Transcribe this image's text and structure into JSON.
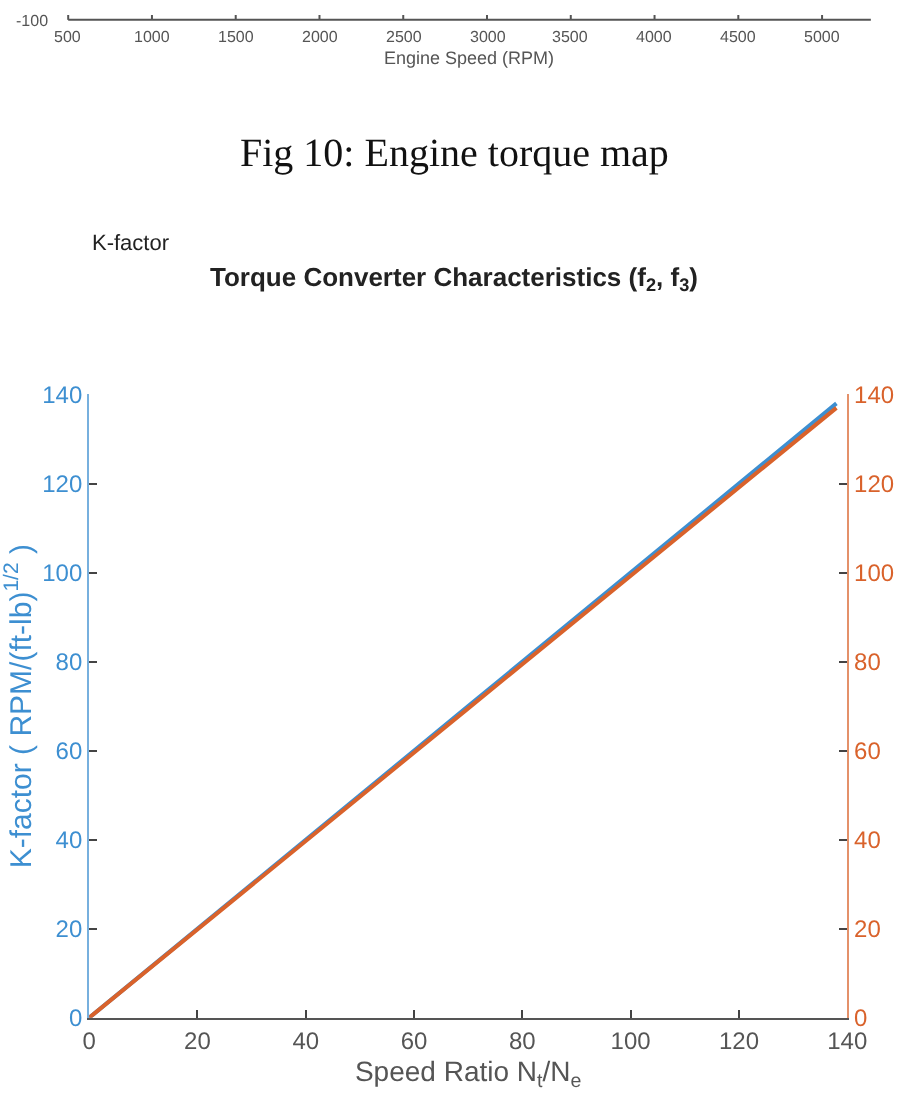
{
  "chart_data": {
    "type": "line",
    "title": "Torque Converter Characteristics (f$_{2}$, f$_{3}$)",
    "xlabel": "Speed Ratio N$_{t}$/N$_{e}$",
    "ylabel": "K-factor ( RPM/(ft-lb)$^{1/2}$ )",
    "annotations": [
      "-100",
      "500",
      "1000",
      "1500",
      "2000",
      "2500",
      "3000",
      "3500",
      "4000",
      "4500",
      "5000",
      "Engine Speed (RPM)",
      "Fig 10: Engine torque map",
      "K-factor"
    ],
    "xlim": [
      0,
      140
    ],
    "xticks": [
      0,
      20,
      40,
      60,
      80,
      100,
      120,
      140
    ],
    "ylim": [
      0,
      140
    ],
    "yticks": [
      0,
      20,
      40,
      60,
      80,
      100,
      120,
      140
    ],
    "y2lim": [
      0,
      140
    ],
    "y2ticks": [
      0,
      20,
      40,
      60,
      80,
      100,
      120,
      140
    ],
    "line_style": "solid",
    "marker": "none",
    "series": [
      {
        "color": "#3d8fd1",
        "x": [
          0,
          70,
          138
        ],
        "values": [
          0,
          70,
          138
        ]
      },
      {
        "color": "#d9622b",
        "axis": "y2",
        "x": [
          0,
          70,
          138
        ],
        "values": [
          0,
          69.5,
          137
        ]
      }
    ]
  }
}
